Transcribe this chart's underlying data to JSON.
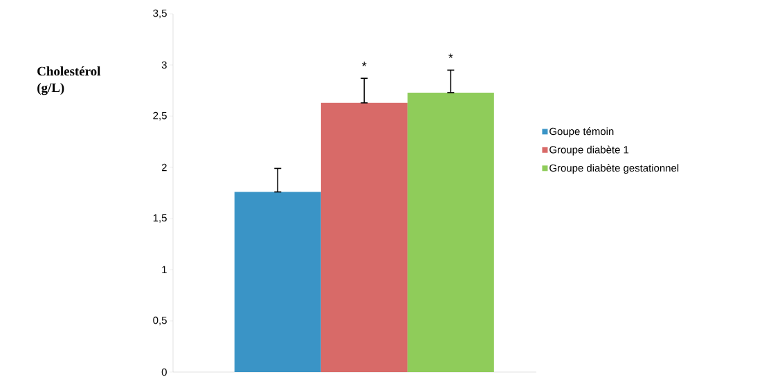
{
  "chart_data": {
    "type": "bar",
    "ylabel": "Cholestérol (g/L)",
    "categories": [
      null
    ],
    "series": [
      {
        "name": "Goupe témoin",
        "color": "#3a94c6",
        "values": [
          1.76
        ],
        "errors": [
          [
            1.76,
            1.99
          ]
        ]
      },
      {
        "name": "Groupe diabète 1",
        "color": "#d86a68",
        "values": [
          2.63
        ],
        "errors": [
          [
            2.63,
            2.87
          ]
        ]
      },
      {
        "name": "Groupe diabète gestationnel",
        "color": "#8fcc5a",
        "values": [
          2.73
        ],
        "errors": [
          [
            2.73,
            2.95
          ]
        ]
      }
    ],
    "annotations": [
      "*",
      "*"
    ],
    "ylim": [
      0,
      3.5
    ],
    "yticks": [
      0,
      {
        "value": 0.5,
        "label": "0,5"
      },
      1,
      {
        "value": 1.5,
        "label": "1,5"
      },
      2,
      {
        "value": 2.5,
        "label": "2,5"
      },
      3,
      {
        "value": 3.5,
        "label": "3,5"
      }
    ],
    "legend": "right",
    "grid": false
  }
}
